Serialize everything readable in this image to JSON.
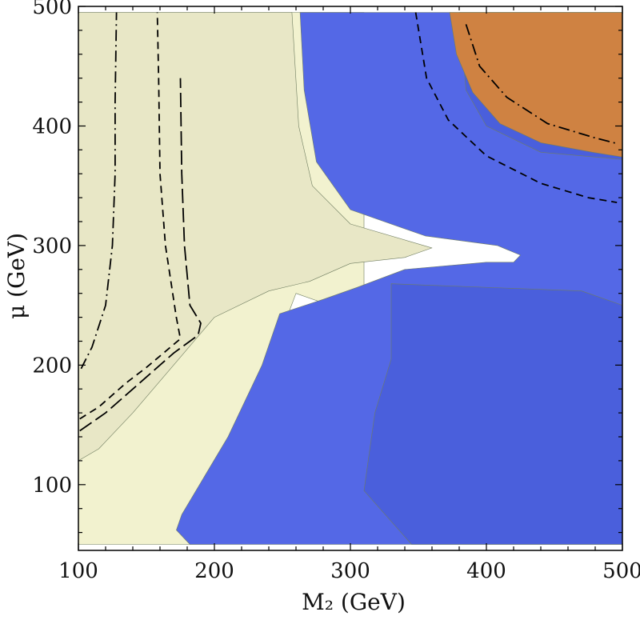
{
  "chart_data": {
    "type": "contour",
    "title": "",
    "xlabel": "M₂ (GeV)",
    "ylabel": "μ (GeV)",
    "xlim": [
      100,
      500
    ],
    "ylim": [
      45,
      500
    ],
    "x_ticks": [
      100,
      200,
      300,
      400,
      500
    ],
    "y_ticks": [
      100,
      200,
      300,
      400,
      500
    ],
    "grid": false,
    "legend": "none",
    "regions": [
      {
        "fill": "#f2f2cf",
        "points": [
          [
            100,
            50
          ],
          [
            100,
            495
          ],
          [
            310,
            495
          ],
          [
            310,
            240
          ],
          [
            260,
            260
          ],
          [
            240,
            200
          ],
          [
            218,
            120
          ],
          [
            200,
            50
          ]
        ]
      },
      {
        "fill": "#e8e7c6",
        "points": [
          [
            100,
            120
          ],
          [
            100,
            495
          ],
          [
            257,
            495
          ],
          [
            262,
            400
          ],
          [
            272,
            350
          ],
          [
            300,
            318
          ],
          [
            360,
            298
          ],
          [
            340,
            290
          ],
          [
            300,
            285
          ],
          [
            270,
            270
          ],
          [
            240,
            262
          ],
          [
            200,
            240
          ],
          [
            170,
            200
          ],
          [
            140,
            160
          ],
          [
            115,
            130
          ]
        ]
      },
      {
        "fill": "#5468e6",
        "points": [
          [
            500,
            50
          ],
          [
            500,
            495
          ],
          [
            263,
            495
          ],
          [
            266,
            430
          ],
          [
            275,
            370
          ],
          [
            300,
            330
          ],
          [
            355,
            308
          ],
          [
            408,
            300
          ],
          [
            425,
            292
          ],
          [
            420,
            286
          ],
          [
            400,
            286
          ],
          [
            340,
            280
          ],
          [
            305,
            265
          ],
          [
            280,
            255
          ],
          [
            248,
            243
          ],
          [
            235,
            200
          ],
          [
            210,
            140
          ],
          [
            176,
            75
          ],
          [
            172,
            62
          ],
          [
            182,
            50
          ]
        ]
      },
      {
        "fill": "#4a5fdc",
        "points": [
          [
            500,
            50
          ],
          [
            500,
            495
          ],
          [
            380,
            495
          ],
          [
            385,
            430
          ],
          [
            400,
            400
          ],
          [
            440,
            378
          ],
          [
            500,
            372
          ]
        ]
      },
      {
        "fill": "#4a5fdc",
        "points": [
          [
            500,
            50
          ],
          [
            500,
            250
          ],
          [
            470,
            262
          ],
          [
            330,
            268
          ],
          [
            330,
            205
          ],
          [
            318,
            160
          ],
          [
            310,
            95
          ],
          [
            345,
            50
          ]
        ]
      },
      {
        "fill": "#cf8242",
        "points": [
          [
            373,
            495
          ],
          [
            500,
            495
          ],
          [
            500,
            374
          ],
          [
            478,
            378
          ],
          [
            440,
            386
          ],
          [
            410,
            402
          ],
          [
            390,
            428
          ],
          [
            378,
            460
          ]
        ]
      }
    ],
    "contours": [
      {
        "style": "dash-dot",
        "points": [
          [
            102,
            197
          ],
          [
            110,
            215
          ],
          [
            120,
            250
          ],
          [
            125,
            300
          ],
          [
            127,
            360
          ],
          [
            127,
            420
          ],
          [
            128,
            495
          ]
        ]
      },
      {
        "style": "dash",
        "points": [
          [
            101,
            155
          ],
          [
            115,
            165
          ],
          [
            135,
            185
          ],
          [
            150,
            198
          ],
          [
            175,
            222
          ],
          [
            172,
            240
          ],
          [
            164,
            300
          ],
          [
            160,
            360
          ],
          [
            159,
            440
          ],
          [
            158,
            495
          ]
        ]
      },
      {
        "style": "long-dash",
        "points": [
          [
            101,
            145
          ],
          [
            120,
            160
          ],
          [
            145,
            185
          ],
          [
            170,
            210
          ],
          [
            188,
            225
          ],
          [
            190,
            235
          ],
          [
            182,
            250
          ],
          [
            178,
            300
          ],
          [
            176,
            360
          ],
          [
            175,
            440
          ]
        ]
      },
      {
        "style": "dash",
        "points": [
          [
            348,
            495
          ],
          [
            356,
            440
          ],
          [
            372,
            405
          ],
          [
            400,
            375
          ],
          [
            440,
            352
          ],
          [
            475,
            340
          ],
          [
            496,
            336
          ]
        ]
      },
      {
        "style": "dash-dot",
        "points": [
          [
            385,
            485
          ],
          [
            395,
            450
          ],
          [
            415,
            424
          ],
          [
            445,
            402
          ],
          [
            480,
            390
          ],
          [
            497,
            385
          ]
        ]
      }
    ],
    "annotations": []
  }
}
